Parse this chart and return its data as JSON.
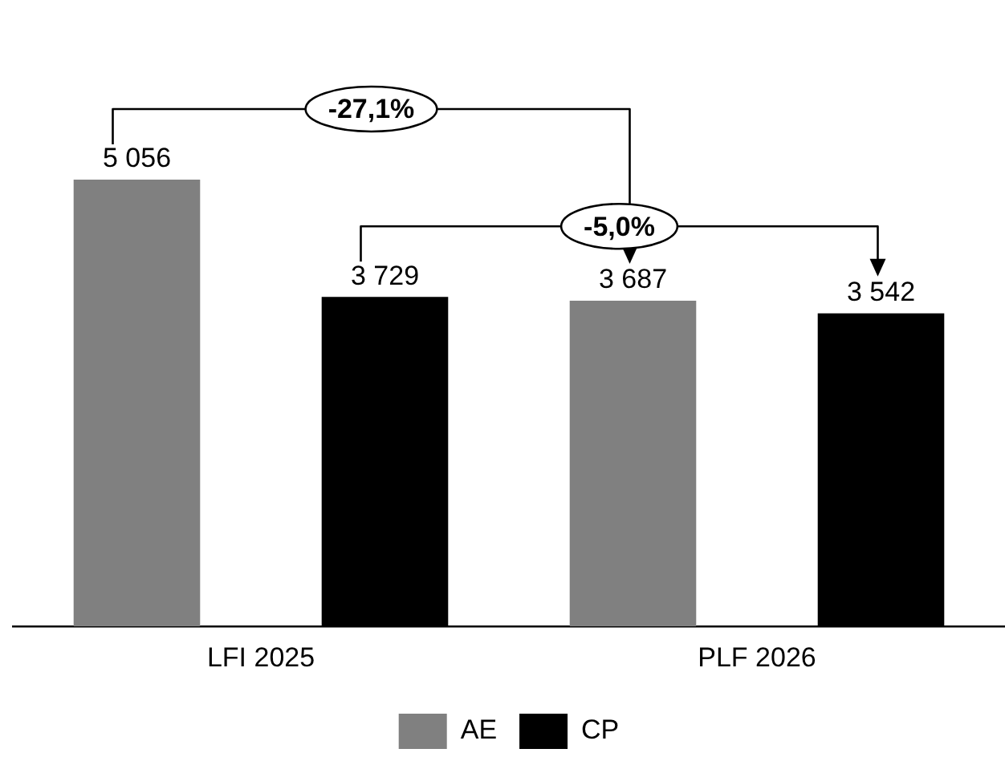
{
  "chart_data": {
    "type": "bar",
    "categories": [
      "LFI 2025",
      "PLF 2026"
    ],
    "series": [
      {
        "name": "AE",
        "color": "#808080",
        "values": [
          5056,
          3687
        ],
        "value_labels": [
          "5 056",
          "3 687"
        ]
      },
      {
        "name": "CP",
        "color": "#000000",
        "values": [
          3729,
          3542
        ],
        "value_labels": [
          "3 729",
          "3 542"
        ]
      }
    ],
    "annotations": [
      "-27,1%",
      "-5,0%"
    ],
    "tick_labels": "x",
    "grid": false,
    "legend": "bottom"
  }
}
